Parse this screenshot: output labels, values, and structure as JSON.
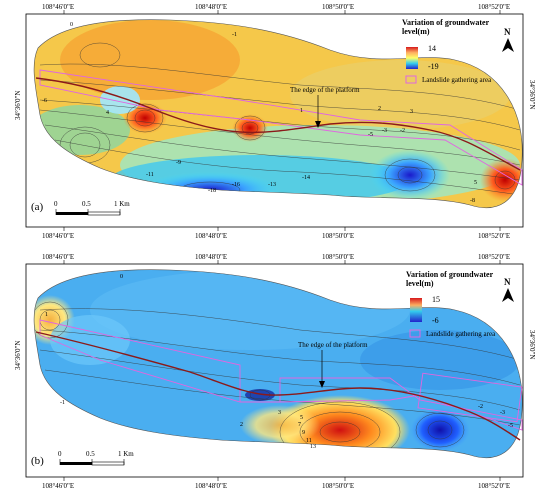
{
  "panels": [
    {
      "id": "a",
      "panel_label": "(a)",
      "top_ticks": [
        "108°46'0\"E",
        "108°48'0\"E",
        "108°50'0\"E",
        "108°52'0\"E"
      ],
      "bottom_ticks": [
        "108°46'0\"E",
        "108°48'0\"E",
        "108°50'0\"E",
        "108°52'0\"E"
      ],
      "left_tick": "34°36'0\"N",
      "right_tick": "34°36'0\"N",
      "legend": {
        "title": "Variation of groundwater level(m)",
        "max": "14",
        "min": "-19",
        "gathering_area": "Landslide gathering area"
      },
      "annotation": "The edge of  the platform",
      "scale": {
        "labels": [
          "0",
          "0.5",
          "1 Km"
        ]
      },
      "contour_labels": [
        "0",
        "-1",
        "2",
        "3",
        "-2",
        "-3",
        "-5",
        "4",
        "-6",
        "-9",
        "-11",
        "-13",
        "-14",
        "-16",
        "-18",
        "-8",
        "1",
        "5"
      ]
    },
    {
      "id": "b",
      "panel_label": "(b)",
      "top_ticks": [
        "108°46'0\"E",
        "108°48'0\"E",
        "108°50'0\"E",
        "108°52'0\"E"
      ],
      "bottom_ticks": [
        "108°46'0\"E",
        "108°48'0\"E",
        "108°50'0\"E",
        "108°52'0\"E"
      ],
      "left_tick": "34°36'0\"N",
      "right_tick": "34°36'0\"N",
      "legend": {
        "title": "Variation of groundwater level(m)",
        "max": "15",
        "min": "-6",
        "gathering_area": "Landslide gathering area"
      },
      "annotation": "The edge of  the platform",
      "scale": {
        "labels": [
          "0",
          "0.5",
          "1 Km"
        ]
      },
      "contour_labels": [
        "0",
        "-1",
        "1",
        "2",
        "3",
        "5",
        "7",
        "9",
        "11",
        "13",
        "-2",
        "-3",
        "-5"
      ]
    }
  ],
  "colors": {
    "edge_line": "#8b1a1a",
    "gathering_area": "#e066e0",
    "contour": "#333333"
  }
}
